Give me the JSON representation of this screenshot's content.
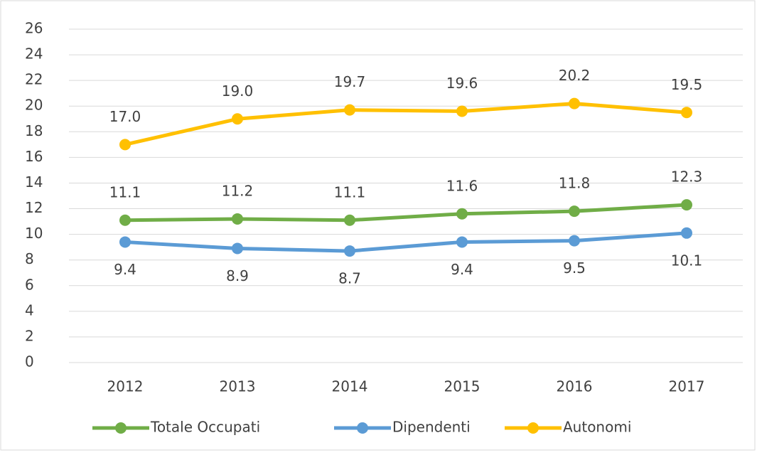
{
  "chart_data": {
    "type": "line",
    "categories": [
      "2012",
      "2013",
      "2014",
      "2015",
      "2016",
      "2017"
    ],
    "series": [
      {
        "name": "Totale Occupati",
        "color": "#70ad47",
        "values": [
          11.1,
          11.2,
          11.1,
          11.6,
          11.8,
          12.3
        ],
        "value_labels": [
          "11.1",
          "11.2",
          "11.1",
          "11.6",
          "11.8",
          "12.3"
        ]
      },
      {
        "name": "Dipendenti",
        "color": "#5b9bd5",
        "values": [
          9.4,
          8.9,
          8.7,
          9.4,
          9.5,
          10.1
        ],
        "value_labels": [
          "9.4",
          "8.9",
          "8.7",
          "9.4",
          "9.5",
          "10.1"
        ]
      },
      {
        "name": "Autonomi",
        "color": "#ffc000",
        "values": [
          17.0,
          19.0,
          19.7,
          19.6,
          20.2,
          19.5
        ],
        "value_labels": [
          "17.0",
          "19.0",
          "19.7",
          "19.6",
          "20.2",
          "19.5"
        ]
      }
    ],
    "ylim": [
      0,
      26
    ],
    "yticks": [
      0,
      2,
      4,
      6,
      8,
      10,
      12,
      14,
      16,
      18,
      20,
      22,
      24,
      26
    ],
    "grid": true,
    "legend": "bottom"
  }
}
